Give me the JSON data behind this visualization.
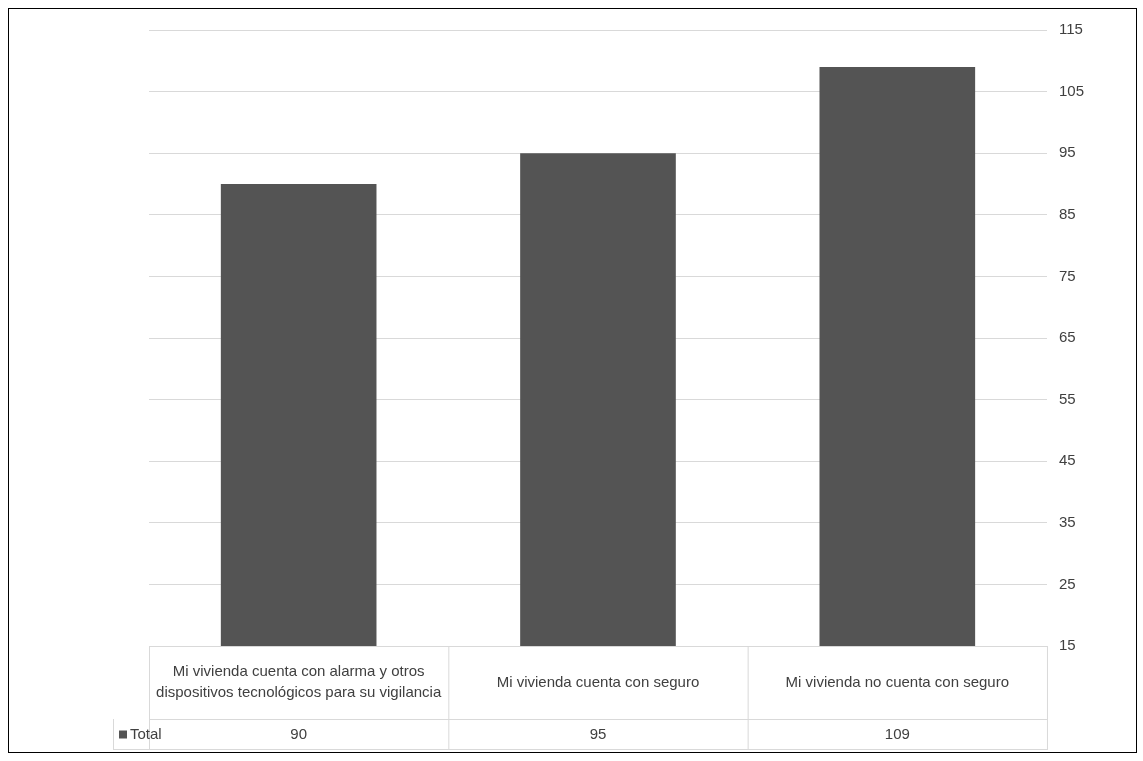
{
  "chart_data": {
    "type": "bar",
    "categories": [
      "Mi vivienda cuenta con alarma y otros dispositivos tecnológicos para su vigilancia",
      "Mi vivienda cuenta con seguro",
      "Mi vivienda no cuenta con seguro"
    ],
    "series": [
      {
        "name": "Total",
        "color": "#545454",
        "values": [
          90,
          95,
          109
        ]
      }
    ],
    "ylim": [
      15,
      115
    ],
    "yticks": [
      15,
      25,
      35,
      45,
      55,
      65,
      75,
      85,
      95,
      105,
      115
    ],
    "grid": "y",
    "data_labels": true
  }
}
